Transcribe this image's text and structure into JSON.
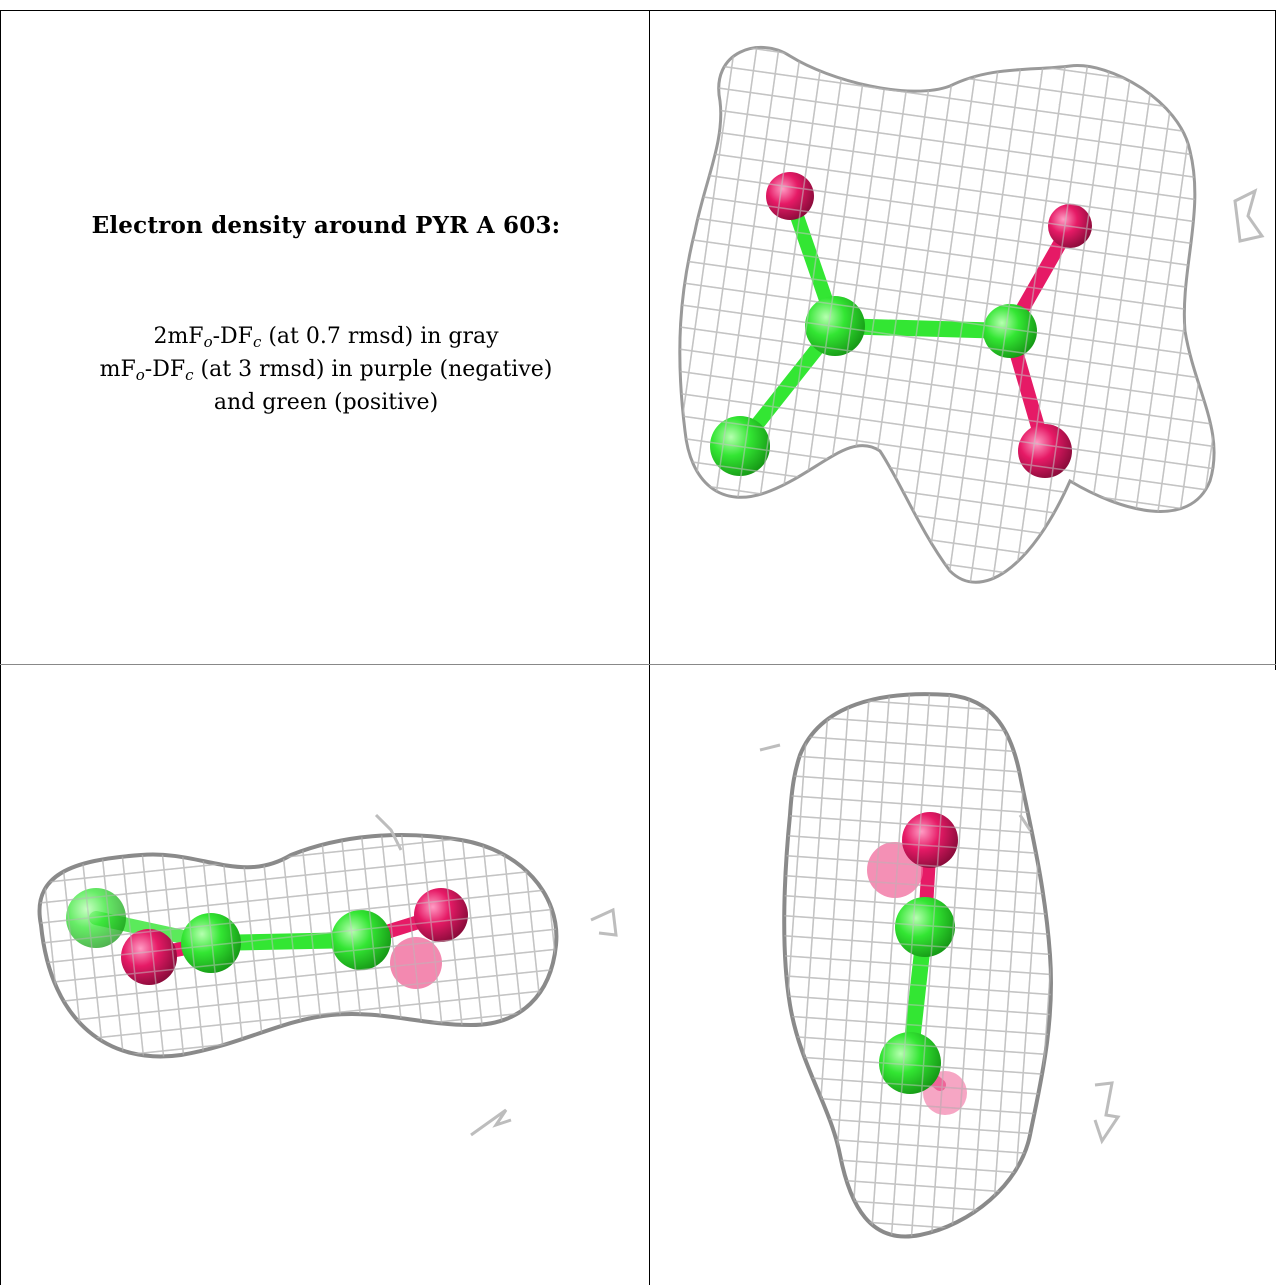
{
  "caption": {
    "title": "Electron density around PYR A 603:",
    "map1_prefix": "2mF",
    "map1_sub_o": "o",
    "map1_mid": "-DF",
    "map1_sub_c": "c",
    "map1_suffix": " (at 0.7 rmsd) in gray",
    "map2_prefix": "mF",
    "map2_sub_o": "o",
    "map2_mid": "-DF",
    "map2_sub_c": "c",
    "map2_suffix": " (at 3 rmsd) in purple (negative)",
    "map2_cont": "and green (positive)"
  },
  "colors": {
    "mesh": "#b8b8b8",
    "carbon": "#33e633",
    "oxygen": "#e61a66"
  },
  "views": [
    {
      "name": "view-top-right"
    },
    {
      "name": "view-bottom-left"
    },
    {
      "name": "view-bottom-right"
    }
  ]
}
